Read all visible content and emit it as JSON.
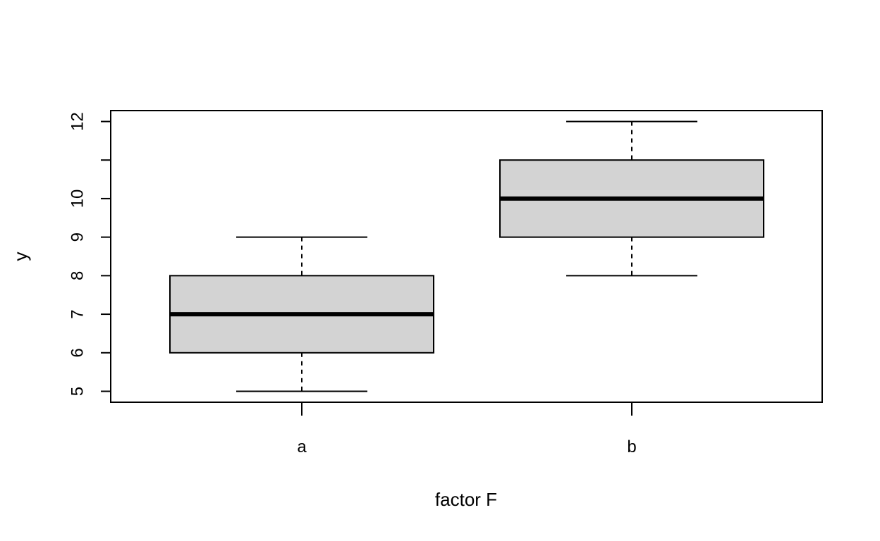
{
  "chart_data": {
    "type": "boxplot",
    "title": "",
    "xlabel": "factor F",
    "ylabel": "y",
    "categories": [
      "a",
      "b"
    ],
    "ylim": [
      4.72,
      12.28
    ],
    "yticks": [
      {
        "value": 5,
        "label": "5"
      },
      {
        "value": 6,
        "label": "6"
      },
      {
        "value": 7,
        "label": "7"
      },
      {
        "value": 8,
        "label": "8"
      },
      {
        "value": 9,
        "label": "9"
      },
      {
        "value": 10,
        "label": "10"
      },
      {
        "value": 11,
        "label": ""
      },
      {
        "value": 12,
        "label": "12"
      }
    ],
    "boxes": [
      {
        "category": "a",
        "whisker_low": 5,
        "q1": 6,
        "median": 7,
        "q3": 8,
        "whisker_high": 9
      },
      {
        "category": "b",
        "whisker_low": 8,
        "q1": 9,
        "median": 10,
        "q3": 11,
        "whisker_high": 12
      }
    ],
    "box_fill": "#d3d3d3",
    "line_color": "#000000",
    "grid": false,
    "legend": "none"
  }
}
